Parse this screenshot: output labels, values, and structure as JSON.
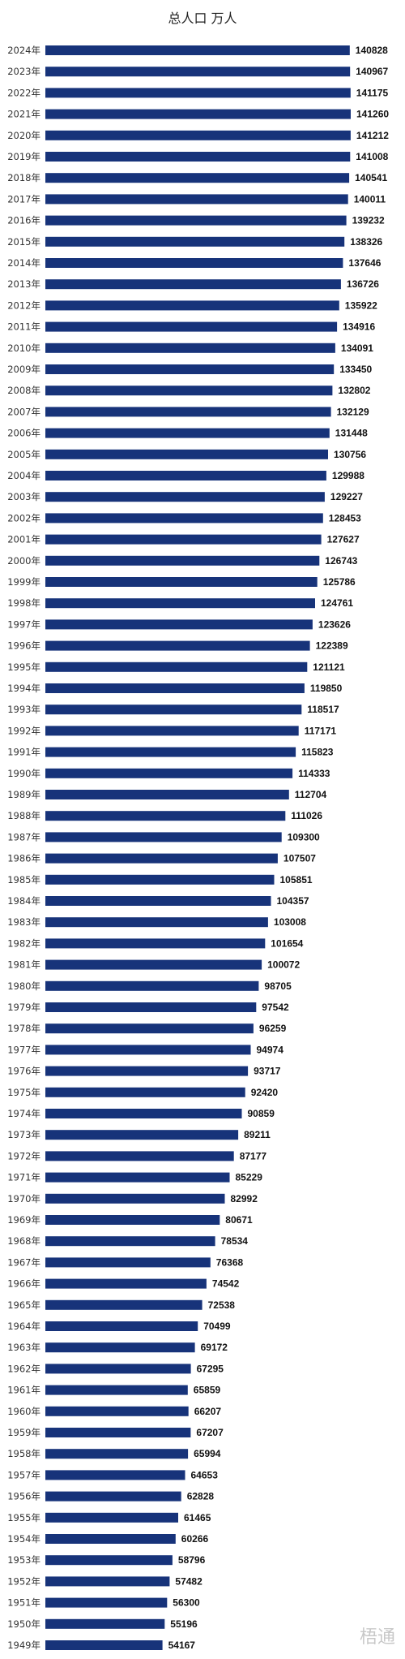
{
  "chart_data": {
    "type": "bar",
    "orientation": "horizontal",
    "title": "总人口 万人",
    "xlabel": "",
    "ylabel": "",
    "xlim": [
      0,
      145000
    ],
    "grid": false,
    "bar_color": "#17337a",
    "categories": [
      "2024年",
      "2023年",
      "2022年",
      "2021年",
      "2020年",
      "2019年",
      "2018年",
      "2017年",
      "2016年",
      "2015年",
      "2014年",
      "2013年",
      "2012年",
      "2011年",
      "2010年",
      "2009年",
      "2008年",
      "2007年",
      "2006年",
      "2005年",
      "2004年",
      "2003年",
      "2002年",
      "2001年",
      "2000年",
      "1999年",
      "1998年",
      "1997年",
      "1996年",
      "1995年",
      "1994年",
      "1993年",
      "1992年",
      "1991年",
      "1990年",
      "1989年",
      "1988年",
      "1987年",
      "1986年",
      "1985年",
      "1984年",
      "1983年",
      "1982年",
      "1981年",
      "1980年",
      "1979年",
      "1978年",
      "1977年",
      "1976年",
      "1975年",
      "1974年",
      "1973年",
      "1972年",
      "1971年",
      "1970年",
      "1969年",
      "1968年",
      "1967年",
      "1966年",
      "1965年",
      "1964年",
      "1963年",
      "1962年",
      "1961年",
      "1960年",
      "1959年",
      "1958年",
      "1957年",
      "1956年",
      "1955年",
      "1954年",
      "1953年",
      "1952年",
      "1951年",
      "1950年",
      "1949年"
    ],
    "values": [
      140828,
      140967,
      141175,
      141260,
      141212,
      141008,
      140541,
      140011,
      139232,
      138326,
      137646,
      136726,
      135922,
      134916,
      134091,
      133450,
      132802,
      132129,
      131448,
      130756,
      129988,
      129227,
      128453,
      127627,
      126743,
      125786,
      124761,
      123626,
      122389,
      121121,
      119850,
      118517,
      117171,
      115823,
      114333,
      112704,
      111026,
      109300,
      107507,
      105851,
      104357,
      103008,
      101654,
      100072,
      98705,
      97542,
      96259,
      94974,
      93717,
      92420,
      90859,
      89211,
      87177,
      85229,
      82992,
      80671,
      78534,
      76368,
      74542,
      72538,
      70499,
      69172,
      67295,
      65859,
      66207,
      67207,
      65994,
      64653,
      62828,
      61465,
      60266,
      58796,
      57482,
      56300,
      55196,
      54167
    ]
  },
  "watermark": "梧通"
}
